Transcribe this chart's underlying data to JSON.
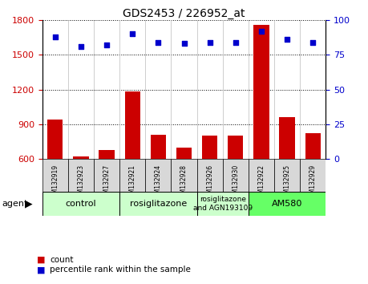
{
  "title": "GDS2453 / 226952_at",
  "samples": [
    "GSM132919",
    "GSM132923",
    "GSM132927",
    "GSM132921",
    "GSM132924",
    "GSM132928",
    "GSM132926",
    "GSM132930",
    "GSM132922",
    "GSM132925",
    "GSM132929"
  ],
  "counts": [
    940,
    625,
    680,
    1185,
    810,
    700,
    800,
    800,
    1760,
    960,
    820
  ],
  "percentile": [
    88,
    81,
    82,
    90,
    84,
    83,
    84,
    84,
    92,
    86,
    84
  ],
  "ylim_left": [
    600,
    1800
  ],
  "ylim_right": [
    0,
    100
  ],
  "yticks_left": [
    600,
    900,
    1200,
    1500,
    1800
  ],
  "yticks_right": [
    0,
    25,
    50,
    75,
    100
  ],
  "bar_color": "#cc0000",
  "dot_color": "#0000cc",
  "agent_groups": [
    {
      "label": "control",
      "span": [
        0,
        2
      ],
      "color": "#ccffcc"
    },
    {
      "label": "rosiglitazone",
      "span": [
        3,
        5
      ],
      "color": "#ccffcc"
    },
    {
      "label": "rosiglitazone\nand AGN193109",
      "span": [
        6,
        7
      ],
      "color": "#ccffcc"
    },
    {
      "label": "AM580",
      "span": [
        8,
        10
      ],
      "color": "#66ff66"
    }
  ],
  "agent_label": "agent",
  "legend_count_label": "count",
  "legend_pct_label": "percentile rank within the sample",
  "tick_box_color": "#d8d8d8",
  "plot_bg_color": "#ffffff"
}
